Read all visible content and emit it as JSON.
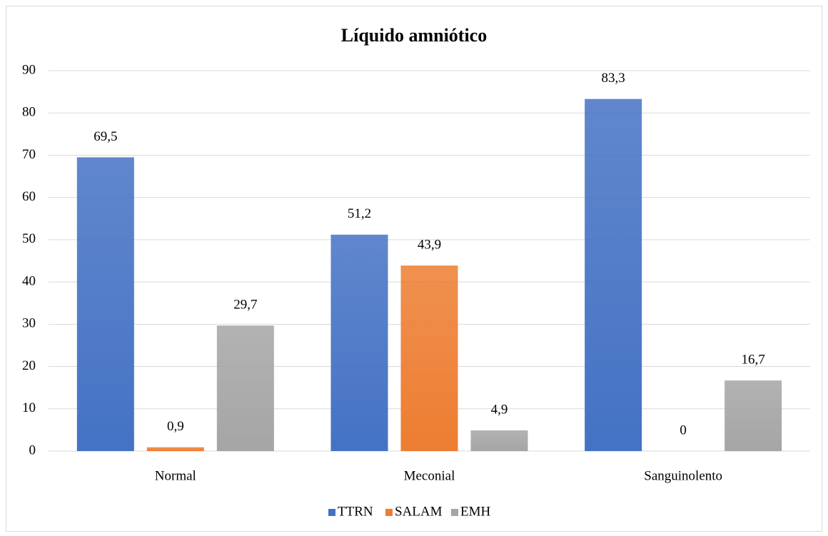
{
  "chart_data": {
    "type": "bar",
    "title": "Líquido amniótico",
    "categories": [
      "Normal",
      "Meconial",
      "Sanguinolento"
    ],
    "series": [
      {
        "name": "TTRN",
        "color": "#4472c4",
        "values": [
          69.5,
          51.2,
          83.3
        ],
        "value_labels": [
          "69,5",
          "51,2",
          "83,3"
        ]
      },
      {
        "name": "SALAM",
        "color": "#ed7d31",
        "values": [
          0.9,
          43.9,
          0
        ],
        "value_labels": [
          "0,9",
          "43,9",
          "0"
        ]
      },
      {
        "name": "EMH",
        "color": "#a5a5a5",
        "values": [
          29.7,
          4.9,
          16.7
        ],
        "value_labels": [
          "29,7",
          "4,9",
          "16,7"
        ]
      }
    ],
    "ylim": [
      0,
      90
    ],
    "yticks": [
      0,
      10,
      20,
      30,
      40,
      50,
      60,
      70,
      80,
      90
    ],
    "grid": true,
    "legend": "bottom"
  }
}
